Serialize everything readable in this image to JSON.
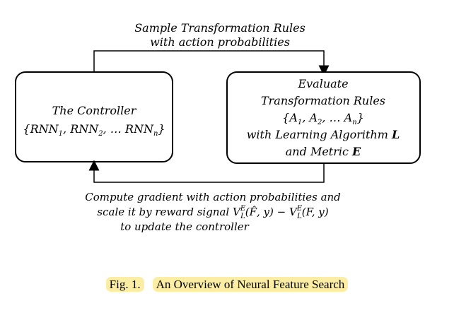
{
  "top_arrow": {
    "line1": "Sample Transformation Rules",
    "line2": "with action probabilities"
  },
  "controller": {
    "title": "The Controller",
    "set_open": "{",
    "rnn": "RNN",
    "sub1": "1",
    "sub2": "2",
    "subn": "n",
    "sep": ", ",
    "ellipsis": "…",
    "set_close": "}"
  },
  "evaluator": {
    "line1": "Evaluate",
    "line2": "Transformation Rules",
    "set_open": "{",
    "a": "A",
    "sub1": "1",
    "sub2": "2",
    "subn": "n",
    "sep": ", ",
    "ellipsis": "…",
    "set_close": "}",
    "line4_prefix": "with Learning Algorithm ",
    "algo": "L",
    "line5_prefix": "and Metric ",
    "metric": "E"
  },
  "bottom_arrow": {
    "line1": "Compute gradient with action probabilities and",
    "line2_prefix": "scale it by reward signal ",
    "v": "V",
    "sub": "L",
    "sup": "E",
    "arg1": "(F̂, y)",
    "minus": " − ",
    "arg2": "(F, y)",
    "line3": "to update the controller"
  },
  "caption": {
    "fig": "Fig. 1.",
    "text": "An Overview of Neural Feature Search"
  }
}
